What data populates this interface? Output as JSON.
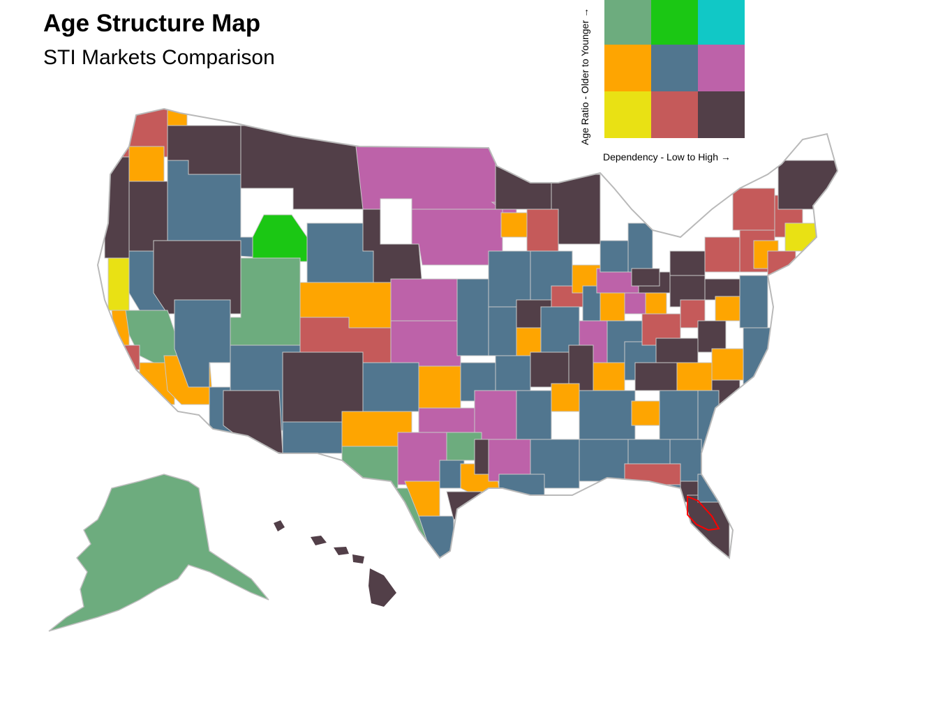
{
  "header": {
    "title": "Age Structure Map",
    "subtitle": "STI Markets Comparison"
  },
  "legend": {
    "y_label": "Age Ratio - Older to Younger →",
    "x_label": "Dependency - Low to High →",
    "cells": [
      {
        "row": "younger",
        "col": "low",
        "color": "#6dac7e"
      },
      {
        "row": "younger",
        "col": "mid",
        "color": "#1bc714"
      },
      {
        "row": "younger",
        "col": "high",
        "color": "#11c8c6"
      },
      {
        "row": "mid",
        "col": "low",
        "color": "#fea501"
      },
      {
        "row": "mid",
        "col": "mid",
        "color": "#51768f"
      },
      {
        "row": "mid",
        "col": "high",
        "color": "#bd62a9"
      },
      {
        "row": "older",
        "col": "low",
        "color": "#e9e114"
      },
      {
        "row": "older",
        "col": "mid",
        "color": "#c55a5a"
      },
      {
        "row": "older",
        "col": "high",
        "color": "#523f48"
      }
    ]
  },
  "map": {
    "border_color": "#c8c8c8",
    "highlight_color": "#ff0000"
  }
}
